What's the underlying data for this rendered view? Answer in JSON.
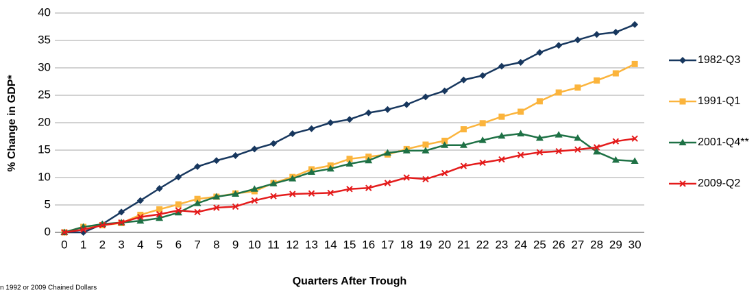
{
  "chart_data": {
    "type": "line",
    "x_label": "Quarters After Trough",
    "y_label": "% Change in GDP*",
    "footnote": "n 1992 or 2009 Chained Dollars",
    "categories": [
      "0",
      "1",
      "2",
      "3",
      "4",
      "5",
      "6",
      "7",
      "8",
      "9",
      "10",
      "11",
      "12",
      "13",
      "14",
      "15",
      "16",
      "17",
      "18",
      "19",
      "20",
      "21",
      "22",
      "23",
      "24",
      "25",
      "26",
      "27",
      "28",
      "29",
      "30"
    ],
    "ylim": [
      0,
      40
    ],
    "yticks": [
      0,
      5,
      10,
      15,
      20,
      25,
      30,
      35,
      40
    ],
    "grid": true,
    "legend": "right",
    "series": [
      {
        "name": "1982-Q3",
        "color": "#17375e",
        "marker": "diamond",
        "values": [
          0,
          0,
          1.5,
          3.7,
          5.8,
          8,
          10.1,
          12,
          13.1,
          14,
          15.2,
          16.2,
          18,
          18.9,
          20,
          20.6,
          21.8,
          22.4,
          23.3,
          24.7,
          25.8,
          27.8,
          28.6,
          30.3,
          31,
          32.8,
          34.1,
          35.1,
          36.1,
          36.5,
          37.9
        ]
      },
      {
        "name": "1991-Q1",
        "color": "#fbb43c",
        "marker": "square",
        "values": [
          0,
          1,
          1.3,
          1.7,
          3.2,
          4.2,
          5.1,
          6.1,
          6.5,
          7.1,
          7.5,
          9,
          10.1,
          11.5,
          12.2,
          13.4,
          13.8,
          14.2,
          15.2,
          16,
          16.7,
          18.8,
          19.9,
          21.1,
          22,
          23.9,
          25.5,
          26.4,
          27.7,
          29,
          30.7
        ]
      },
      {
        "name": "2001-Q4**",
        "color": "#1e7145",
        "marker": "triangle",
        "values": [
          0,
          1,
          1.5,
          1.8,
          2.1,
          2.6,
          3.6,
          5.3,
          6.5,
          7,
          7.9,
          8.9,
          9.8,
          11,
          11.6,
          12.5,
          13.1,
          14.5,
          14.9,
          14.9,
          15.9,
          15.9,
          16.8,
          17.6,
          18,
          17.2,
          17.8,
          17.2,
          14.7,
          13.2,
          13
        ]
      },
      {
        "name": "2009-Q2",
        "color": "#e41b1b",
        "marker": "x",
        "values": [
          0,
          0.5,
          1.3,
          1.8,
          2.8,
          3.3,
          4,
          3.7,
          4.5,
          4.7,
          5.8,
          6.6,
          7,
          7.1,
          7.2,
          7.9,
          8.1,
          9,
          10,
          9.7,
          10.8,
          12.1,
          12.7,
          13.3,
          14.1,
          14.6,
          14.8,
          15.1,
          15.5,
          16.6,
          17.1
        ]
      }
    ]
  }
}
